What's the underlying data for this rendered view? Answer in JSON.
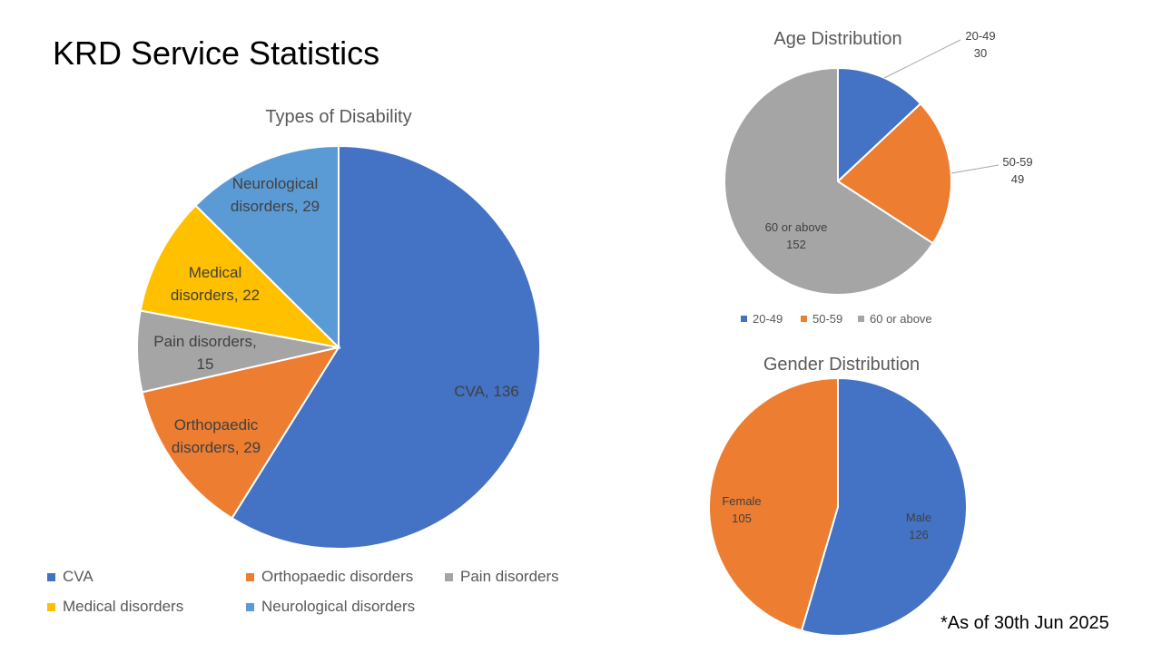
{
  "slide_title": "KRD Service Statistics",
  "footnote": "*As of 30th Jun 2025",
  "chart_data": [
    {
      "type": "pie",
      "title": "Types of Disability",
      "categories": [
        "CVA",
        "Orthopaedic disorders",
        "Pain disorders",
        "Medical disorders",
        "Neurological disorders"
      ],
      "values": [
        136,
        29,
        15,
        22,
        29
      ],
      "data_labels": [
        [
          "CVA, 136"
        ],
        [
          "Orthopaedic",
          "disorders, 29"
        ],
        [
          "Pain disorders,",
          "15"
        ],
        [
          "Medical",
          "disorders, 22"
        ],
        [
          "Neurological",
          "disorders, 29"
        ]
      ],
      "colors": [
        "#4472C4",
        "#ED7D31",
        "#A5A5A5",
        "#FFC000",
        "#5B9BD5"
      ],
      "legend": "bottom"
    },
    {
      "type": "pie",
      "title": "Age Distribution",
      "categories": [
        "20-49",
        "50-59",
        "60 or above"
      ],
      "values": [
        30,
        49,
        152
      ],
      "data_labels": [
        [
          "20-49",
          "30"
        ],
        [
          "50-59",
          "49"
        ],
        [
          "60 or above",
          "152"
        ]
      ],
      "colors": [
        "#4472C4",
        "#ED7D31",
        "#A5A5A5"
      ],
      "legend": "bottom"
    },
    {
      "type": "pie",
      "title": "Gender Distribution",
      "categories": [
        "Male",
        "Female"
      ],
      "values": [
        126,
        105
      ],
      "data_labels": [
        [
          "Male",
          "126"
        ],
        [
          "Female",
          "105"
        ]
      ],
      "colors": [
        "#4472C4",
        "#ED7D31"
      ],
      "legend": "none"
    }
  ]
}
